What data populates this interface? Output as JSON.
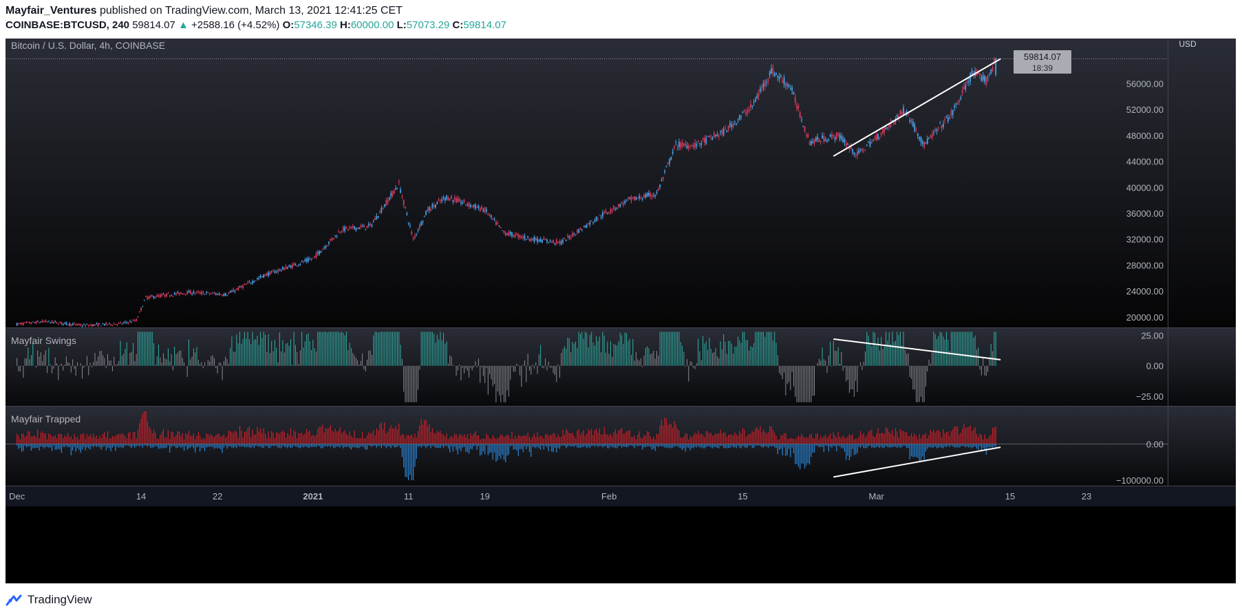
{
  "header": {
    "author": "Mayfair_Ventures",
    "published_text": "published on TradingView.com, March 13, 2021 12:41:25 CET",
    "symbol": "COINBASE:BTCUSD, 240",
    "last": "59814.07",
    "up_arrow": "▲",
    "change": "+2588.16 (+4.52%)",
    "open_label": "O:",
    "open": "57346.39",
    "high_label": "H:",
    "high": "60000.00",
    "low_label": "L:",
    "low": "57073.29",
    "close_label": "C:",
    "close": "59814.07"
  },
  "chart_title": "Bitcoin / U.S. Dollar, 4h, COINBASE",
  "currency": "USD",
  "price_badge": {
    "value": "59814.07",
    "countdown": "18:39"
  },
  "footer": {
    "brand": "TradingView",
    "logo_icon": "tradingview-logo-icon"
  },
  "colors": {
    "up": "#4aa0ea",
    "down": "#d23a5a",
    "teal": "#26a69a",
    "osc_gray": "#8a8d94",
    "osc_teal": "#2fb3a8",
    "trapped_red": "#d0202a",
    "trapped_blue": "#2a8adf"
  },
  "chart_data": [
    {
      "type": "candlestick",
      "title": "Bitcoin / U.S. Dollar, 4h, COINBASE",
      "ylabel": "USD",
      "y_ticks": [
        20000,
        24000,
        28000,
        32000,
        36000,
        40000,
        44000,
        48000,
        52000,
        56000
      ],
      "y_tick_labels": [
        "20000.00",
        "24000.00",
        "28000.00",
        "32000.00",
        "36000.00",
        "40000.00",
        "44000.00",
        "48000.00",
        "52000.00",
        "56000.00"
      ],
      "ylim": [
        18400,
        60600
      ],
      "x_ticks": [
        {
          "label": "Dec",
          "day": 0
        },
        {
          "label": "14",
          "day": 13
        },
        {
          "label": "22",
          "day": 21
        },
        {
          "label": "2021",
          "day": 31,
          "bold": true
        },
        {
          "label": "11",
          "day": 41
        },
        {
          "label": "19",
          "day": 49
        },
        {
          "label": "Feb",
          "day": 62
        },
        {
          "label": "15",
          "day": 76
        },
        {
          "label": "Mar",
          "day": 90
        },
        {
          "label": "15",
          "day": 104
        },
        {
          "label": "23",
          "day": 112
        }
      ],
      "xlim_days": [
        -1.2,
        120.5
      ],
      "last_bar_day": 102.6,
      "last_price": 59814.07,
      "price_path": [
        [
          0,
          18900
        ],
        [
          3,
          19300
        ],
        [
          7,
          18700
        ],
        [
          11,
          19000
        ],
        [
          12.5,
          19500
        ],
        [
          13.5,
          23000
        ],
        [
          18,
          23800
        ],
        [
          22,
          23500
        ],
        [
          26,
          26500
        ],
        [
          31,
          29000
        ],
        [
          34,
          33500
        ],
        [
          37,
          34000
        ],
        [
          40,
          40500
        ],
        [
          41.5,
          32000
        ],
        [
          43,
          36500
        ],
        [
          45,
          38500
        ],
        [
          49,
          36500
        ],
        [
          51,
          33000
        ],
        [
          54,
          32000
        ],
        [
          57,
          31500
        ],
        [
          59,
          33500
        ],
        [
          61,
          35500
        ],
        [
          64,
          38000
        ],
        [
          67,
          39000
        ],
        [
          69,
          46500
        ],
        [
          71,
          46500
        ],
        [
          74,
          48500
        ],
        [
          77,
          52500
        ],
        [
          79,
          58000
        ],
        [
          81,
          55500
        ],
        [
          83,
          47000
        ],
        [
          86,
          48000
        ],
        [
          88,
          45000
        ],
        [
          91,
          49000
        ],
        [
          93,
          52000
        ],
        [
          95,
          46500
        ],
        [
          98,
          51500
        ],
        [
          100,
          57500
        ],
        [
          101.5,
          56500
        ],
        [
          102.6,
          59814
        ]
      ],
      "trendline": {
        "from": {
          "day": 85.5,
          "price": 44800
        },
        "to": {
          "day": 103,
          "price": 59800
        }
      }
    },
    {
      "type": "bar",
      "title": "Mayfair Swings",
      "y_ticks": [
        25,
        0,
        -25
      ],
      "y_tick_labels": [
        "25.00",
        "0.00",
        "−25.00"
      ],
      "ylim": [
        -33,
        31
      ],
      "trendline": {
        "from": {
          "day": 85.5,
          "value": 22
        },
        "to": {
          "day": 103,
          "value": 5
        }
      }
    },
    {
      "type": "area",
      "title": "Mayfair Trapped",
      "y_ticks": [
        0,
        -100000
      ],
      "y_tick_labels": [
        "0.00",
        "−100000.00"
      ],
      "ylim": [
        -115000,
        103000
      ],
      "trendline": {
        "from": {
          "day": 85.5,
          "value": -91000
        },
        "to": {
          "day": 103,
          "value": -9000
        }
      }
    }
  ]
}
